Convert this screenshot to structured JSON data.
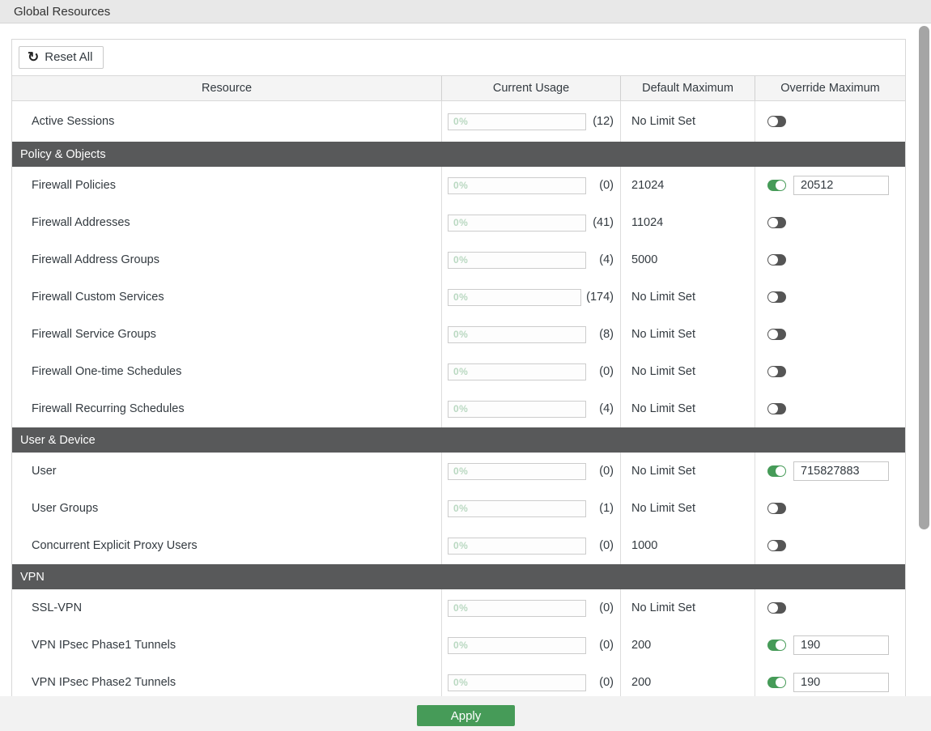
{
  "page": {
    "title": "Global Resources"
  },
  "toolbar": {
    "reset_all_label": "Reset All",
    "reset_icon": "↺"
  },
  "table": {
    "columns": [
      "Resource",
      "Current Usage",
      "Default Maximum",
      "Override Maximum"
    ],
    "sections": [
      {
        "name": null,
        "rows": [
          {
            "resource": "Active Sessions",
            "usage_percent": "0%",
            "usage_count": 12,
            "default_max": "No Limit Set",
            "override_enabled": false,
            "override_value": null
          }
        ]
      },
      {
        "name": "Policy & Objects",
        "rows": [
          {
            "resource": "Firewall Policies",
            "usage_percent": "0%",
            "usage_count": 0,
            "default_max": "21024",
            "override_enabled": true,
            "override_value": "20512"
          },
          {
            "resource": "Firewall Addresses",
            "usage_percent": "0%",
            "usage_count": 41,
            "default_max": "11024",
            "override_enabled": false,
            "override_value": null
          },
          {
            "resource": "Firewall Address Groups",
            "usage_percent": "0%",
            "usage_count": 4,
            "default_max": "5000",
            "override_enabled": false,
            "override_value": null
          },
          {
            "resource": "Firewall Custom Services",
            "usage_percent": "0%",
            "usage_count": 174,
            "default_max": "No Limit Set",
            "override_enabled": false,
            "override_value": null
          },
          {
            "resource": "Firewall Service Groups",
            "usage_percent": "0%",
            "usage_count": 8,
            "default_max": "No Limit Set",
            "override_enabled": false,
            "override_value": null
          },
          {
            "resource": "Firewall One-time Schedules",
            "usage_percent": "0%",
            "usage_count": 0,
            "default_max": "No Limit Set",
            "override_enabled": false,
            "override_value": null
          },
          {
            "resource": "Firewall Recurring Schedules",
            "usage_percent": "0%",
            "usage_count": 4,
            "default_max": "No Limit Set",
            "override_enabled": false,
            "override_value": null
          }
        ]
      },
      {
        "name": "User & Device",
        "rows": [
          {
            "resource": "User",
            "usage_percent": "0%",
            "usage_count": 0,
            "default_max": "No Limit Set",
            "override_enabled": true,
            "override_value": "715827883"
          },
          {
            "resource": "User Groups",
            "usage_percent": "0%",
            "usage_count": 1,
            "default_max": "No Limit Set",
            "override_enabled": false,
            "override_value": null
          },
          {
            "resource": "Concurrent Explicit Proxy Users",
            "usage_percent": "0%",
            "usage_count": 0,
            "default_max": "1000",
            "override_enabled": false,
            "override_value": null
          }
        ]
      },
      {
        "name": "VPN",
        "rows": [
          {
            "resource": "SSL-VPN",
            "usage_percent": "0%",
            "usage_count": 0,
            "default_max": "No Limit Set",
            "override_enabled": false,
            "override_value": null
          },
          {
            "resource": "VPN IPsec Phase1 Tunnels",
            "usage_percent": "0%",
            "usage_count": 0,
            "default_max": "200",
            "override_enabled": true,
            "override_value": "190"
          },
          {
            "resource": "VPN IPsec Phase2 Tunnels",
            "usage_percent": "0%",
            "usage_count": 0,
            "default_max": "200",
            "override_enabled": true,
            "override_value": "190"
          }
        ]
      }
    ]
  },
  "footer": {
    "apply_label": "Apply"
  },
  "colors": {
    "accent_green": "#469b58",
    "section_header_bg": "#58595a",
    "toggle_off": "#555555",
    "progress_text": "#b9d8c1",
    "titlebar_bg": "#e8e8e8",
    "footer_bg": "#f2f2f2"
  }
}
